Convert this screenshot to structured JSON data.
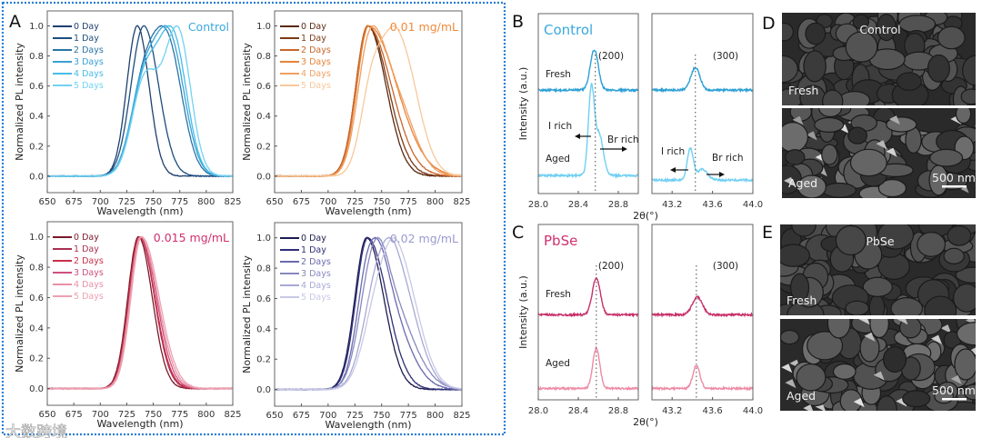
{
  "figure": {
    "panel_labels": {
      "A": "A",
      "B": "B",
      "C": "C",
      "D": "D",
      "E": "E"
    },
    "watermark": "大数跨境",
    "border_color": "#2a7fd4"
  },
  "chart_data": [
    {
      "type": "line",
      "panel": "A",
      "title": "Control",
      "title_color": "#3aa8dc",
      "xlabel": "Wavelength (nm)",
      "ylabel": "Normalized PL intensity",
      "xlim": [
        650,
        825
      ],
      "ylim": [
        -0.11,
        1.1
      ],
      "xticks": [
        "650",
        "675",
        "700",
        "725",
        "750",
        "775",
        "800",
        "825"
      ],
      "yticks": [
        "0.0",
        "0.2",
        "0.4",
        "0.6",
        "0.8",
        "1.0"
      ],
      "series": [
        {
          "name": "0 Day",
          "color": "#1f3f6e",
          "peaks": [
            [
              735,
              1,
              10,
              11
            ]
          ]
        },
        {
          "name": "1 Day",
          "color": "#1c4d7e",
          "peaks": [
            [
              741,
              1,
              12,
              14
            ]
          ]
        },
        {
          "name": "2 Days",
          "color": "#2a74a4",
          "peaks": [
            [
              740,
              0.6,
              12,
              12
            ],
            [
              763,
              1,
              14,
              14
            ]
          ]
        },
        {
          "name": "3 Days",
          "color": "#38a2d4",
          "peaks": [
            [
              740,
              0.6,
              12,
              12
            ],
            [
              765,
              1,
              14,
              14
            ]
          ]
        },
        {
          "name": "4 Days",
          "color": "#46bce8",
          "peaks": [
            [
              741,
              0.62,
              12,
              12
            ],
            [
              768,
              1,
              14,
              13
            ]
          ]
        },
        {
          "name": "5 Days",
          "color": "#72d2f2",
          "peaks": [
            [
              742,
              0.65,
              12,
              12
            ],
            [
              773,
              1,
              13,
              12
            ]
          ]
        }
      ]
    },
    {
      "type": "line",
      "panel": "A",
      "title": "0.01 mg/mL",
      "title_color": "#ef8a3c",
      "xlabel": "Wavelength (nm)",
      "ylabel": "Normalized PL intensity",
      "xlim": [
        650,
        825
      ],
      "ylim": [
        -0.11,
        1.1
      ],
      "xticks": [
        "650",
        "675",
        "700",
        "725",
        "750",
        "775",
        "800",
        "825"
      ],
      "yticks": [
        "0.0",
        "0.2",
        "0.4",
        "0.6",
        "0.8",
        "1.0"
      ],
      "series": [
        {
          "name": "0 Day",
          "color": "#5a2a12",
          "peaks": [
            [
              737,
              1,
              11,
              17
            ]
          ]
        },
        {
          "name": "1 Day",
          "color": "#7c3a16",
          "peaks": [
            [
              737,
              1,
              11,
              19
            ]
          ]
        },
        {
          "name": "2 Days",
          "color": "#c8662a",
          "peaks": [
            [
              737,
              1,
              11,
              22
            ]
          ]
        },
        {
          "name": "3 Days",
          "color": "#e8843a",
          "peaks": [
            [
              738,
              1,
              11,
              26
            ]
          ]
        },
        {
          "name": "4 Days",
          "color": "#f0a060",
          "peaks": [
            [
              738,
              1,
              11,
              12
            ],
            [
              760,
              0.7,
              14,
              18
            ]
          ]
        },
        {
          "name": "5 Days",
          "color": "#f8c89a",
          "peaks": [
            [
              742,
              0.7,
              11,
              12
            ],
            [
              766,
              1,
              13,
              17
            ]
          ]
        }
      ]
    },
    {
      "type": "line",
      "panel": "A",
      "title": "0.015 mg/mL",
      "title_color": "#d0306e",
      "xlabel": "Wavelength (nm)",
      "ylabel": "Normalized PL intensity",
      "xlim": [
        650,
        825
      ],
      "ylim": [
        -0.11,
        1.1
      ],
      "xticks": [
        "650",
        "675",
        "700",
        "725",
        "750",
        "775",
        "800",
        "825"
      ],
      "yticks": [
        "0.0",
        "0.2",
        "0.4",
        "0.6",
        "0.8",
        "1.0"
      ],
      "series": [
        {
          "name": "0 Day",
          "color": "#7a1a2a",
          "peaks": [
            [
              736,
              1,
              10,
              13
            ]
          ]
        },
        {
          "name": "1 Day",
          "color": "#a83050",
          "peaks": [
            [
              737,
              1,
              10,
              14
            ]
          ]
        },
        {
          "name": "2 Days",
          "color": "#c8304a",
          "peaks": [
            [
              737,
              1,
              10,
              14.5
            ]
          ]
        },
        {
          "name": "3 Days",
          "color": "#d05080",
          "peaks": [
            [
              738,
              1,
              10,
              15
            ]
          ]
        },
        {
          "name": "4 Days",
          "color": "#e890a8",
          "peaks": [
            [
              738,
              1,
              10,
              16
            ]
          ]
        },
        {
          "name": "5 Days",
          "color": "#eea0b0",
          "peaks": [
            [
              739,
              1,
              10,
              16.5
            ]
          ]
        }
      ]
    },
    {
      "type": "line",
      "panel": "A",
      "title": "0.02 mg/mL",
      "title_color": "#9a9ad0",
      "xlabel": "Wavelength (nm)",
      "ylabel": "Normalized PL intensity",
      "xlim": [
        650,
        825
      ],
      "ylim": [
        -0.11,
        1.1
      ],
      "xticks": [
        "650",
        "675",
        "700",
        "725",
        "750",
        "775",
        "800",
        "825"
      ],
      "yticks": [
        "0.0",
        "0.2",
        "0.4",
        "0.6",
        "0.8",
        "1.0"
      ],
      "series": [
        {
          "name": "0 Day",
          "color": "#1c1c50",
          "peaks": [
            [
              736,
              1,
              11,
              16
            ]
          ]
        },
        {
          "name": "1 Day",
          "color": "#2e2e78",
          "peaks": [
            [
              737,
              1,
              11,
              18
            ]
          ]
        },
        {
          "name": "2 Days",
          "color": "#6a6ab0",
          "peaks": [
            [
              738,
              0.9,
              11,
              14
            ],
            [
              755,
              0.6,
              14,
              20
            ]
          ]
        },
        {
          "name": "3 Days",
          "color": "#8888c0",
          "peaks": [
            [
              740,
              0.7,
              12,
              12
            ],
            [
              755,
              0.75,
              14,
              22
            ]
          ]
        },
        {
          "name": "4 Days",
          "color": "#a8a8d4",
          "peaks": [
            [
              745,
              0.7,
              13,
              14
            ],
            [
              765,
              0.85,
              14,
              18
            ]
          ]
        },
        {
          "name": "5 Days",
          "color": "#c8c8e6",
          "peaks": [
            [
              745,
              0.55,
              13,
              14
            ],
            [
              766,
              1,
              14,
              18
            ]
          ]
        }
      ]
    },
    {
      "type": "line",
      "panel": "B",
      "title": "Control",
      "title_color": "#3aa8dc",
      "xlabel": "2θ(°)",
      "ylabel": "Intensity (a.u.)",
      "ylim": [
        -0.2,
        1.8
      ],
      "row_labels": [
        "Fresh",
        "Aged"
      ],
      "subplots": [
        {
          "reflection": "(200)",
          "xlim": [
            28.0,
            29.0
          ],
          "xticks": [
            "28.0",
            "28.4",
            "28.8"
          ],
          "reference_line": 28.57,
          "series": [
            {
              "name": "Fresh",
              "color": "#2b9fd6",
              "offset": 0.95,
              "peaks": [
                [
                  28.56,
                  0.45,
                  0.04
                ]
              ]
            },
            {
              "name": "Aged",
              "color": "#6fcff2",
              "offset": 0,
              "peaks": [
                [
                  28.53,
                  0.95,
                  0.03
                ],
                [
                  28.61,
                  0.45,
                  0.04
                ]
              ]
            }
          ],
          "annotations": [
            "I rich",
            "Br rich"
          ]
        },
        {
          "reflection": "(300)",
          "xlim": [
            43.0,
            44.0
          ],
          "xticks": [
            "43.2",
            "43.6",
            "44.0"
          ],
          "reference_line": 43.43,
          "series": [
            {
              "name": "Fresh",
              "color": "#2b9fd6",
              "offset": 0.95,
              "peaks": [
                [
                  43.43,
                  0.25,
                  0.045
                ]
              ]
            },
            {
              "name": "Aged",
              "color": "#6fcff2",
              "offset": -0.05,
              "peaks": [
                [
                  43.38,
                  0.35,
                  0.03
                ],
                [
                  43.5,
                  0.12,
                  0.05
                ]
              ]
            }
          ],
          "annotations": [
            "I rich",
            "Br rich"
          ]
        }
      ]
    },
    {
      "type": "line",
      "panel": "C",
      "title": "PbSe",
      "title_color": "#d0306e",
      "xlabel": "2θ(°)",
      "ylabel": "Intensity (a.u.)",
      "ylim": [
        -0.13,
        1.87
      ],
      "row_labels": [
        "Fresh",
        "Aged"
      ],
      "subplots": [
        {
          "reflection": "(200)",
          "xlim": [
            28.0,
            29.0
          ],
          "xticks": [
            "28.0",
            "28.4",
            "28.8"
          ],
          "reference_line": 28.58,
          "series": [
            {
              "name": "Fresh",
              "color": "#c8306a",
              "offset": 0.84,
              "peaks": [
                [
                  28.58,
                  0.42,
                  0.04
                ]
              ]
            },
            {
              "name": "Aged",
              "color": "#ee8aa4",
              "offset": 0,
              "peaks": [
                [
                  28.58,
                  0.46,
                  0.035
                ]
              ]
            }
          ]
        },
        {
          "reflection": "(300)",
          "xlim": [
            43.0,
            44.0
          ],
          "xticks": [
            "43.2",
            "43.6",
            "44.0"
          ],
          "reference_line": 43.44,
          "series": [
            {
              "name": "Fresh",
              "color": "#c8306a",
              "offset": 0.84,
              "peaks": [
                [
                  43.45,
                  0.2,
                  0.05
                ]
              ]
            },
            {
              "name": "Aged",
              "color": "#ee8aa4",
              "offset": 0,
              "peaks": [
                [
                  43.44,
                  0.26,
                  0.035
                ]
              ]
            }
          ]
        }
      ]
    }
  ],
  "sem": [
    {
      "panel": "D",
      "title": "Control",
      "top_label": "Fresh",
      "bottom_label": "Aged",
      "scale_bar": "500 nm"
    },
    {
      "panel": "E",
      "title": "PbSe",
      "top_label": "Fresh",
      "bottom_label": "Aged",
      "scale_bar": "500 nm"
    }
  ]
}
